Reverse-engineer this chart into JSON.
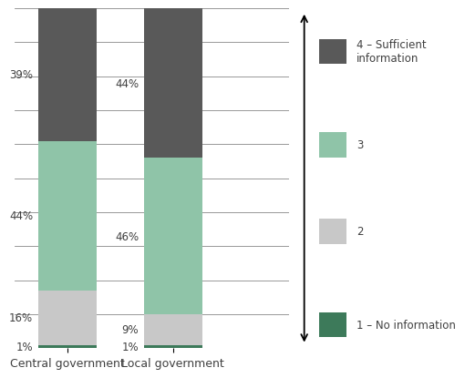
{
  "categories": [
    "Central government",
    "Local government"
  ],
  "segments": [
    {
      "label": "1 – No information",
      "color": "#3d7a5a",
      "values": [
        1,
        1
      ]
    },
    {
      "label": "2",
      "color": "#c8c8c8",
      "values": [
        16,
        9
      ]
    },
    {
      "label": "3",
      "color": "#8fc4a8",
      "values": [
        44,
        46
      ]
    },
    {
      "label": "4 – Sufficient\ninformation",
      "color": "#595959",
      "values": [
        39,
        44
      ]
    }
  ],
  "bar_width": 0.55,
  "label_fontsize": 8.5,
  "legend_fontsize": 8.5,
  "tick_fontsize": 9,
  "background_color": "#ffffff",
  "ylim": [
    0,
    100
  ],
  "yticks": [
    0,
    10,
    20,
    30,
    40,
    50,
    60,
    70,
    80,
    90,
    100
  ],
  "grid_color": "#888888",
  "text_color": "#404040",
  "x_positions": [
    0.5,
    1.5
  ],
  "xlim": [
    0,
    2.6
  ]
}
